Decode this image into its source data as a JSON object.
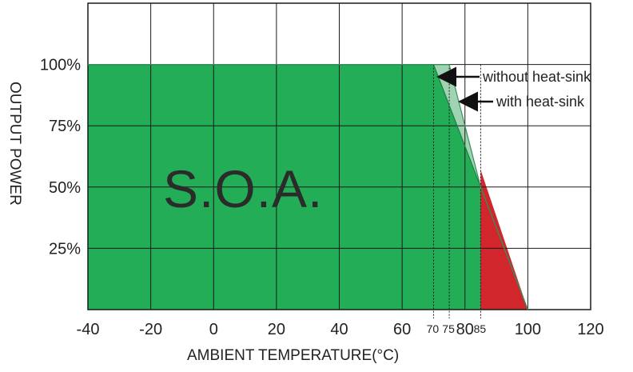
{
  "chart_data": {
    "type": "area",
    "xlabel": "AMBIENT TEMPERATURE(°C)",
    "ylabel": "OUTPUT POWER",
    "xlim": [
      -40,
      120
    ],
    "ylim": [
      0,
      125
    ],
    "grid": true,
    "x_ticks": [
      "-40",
      "-20",
      "0",
      "20",
      "40",
      "60",
      "80",
      "100",
      "120"
    ],
    "x_ticks_minor": [
      "70",
      "75",
      "85"
    ],
    "y_ticks": [
      "25%",
      "50%",
      "75%",
      "100%"
    ],
    "region_label": "S.O.A.",
    "series": [
      {
        "name": "without heat-sink",
        "x": [
          -40,
          70,
          85,
          100
        ],
        "y": [
          100,
          100,
          50,
          0
        ],
        "color": "#23ad57"
      },
      {
        "name": "with heat-sink",
        "x": [
          -40,
          75,
          85,
          100
        ],
        "y": [
          100,
          100,
          50,
          0
        ],
        "color": "#9fd3b1"
      }
    ],
    "derating_zone": {
      "x": [
        85,
        100
      ],
      "y": [
        57,
        0
      ],
      "color": "#d0262c"
    },
    "annotations": [
      {
        "text": "without heat-sink",
        "points_to": [
          70,
          100
        ]
      },
      {
        "text": "with heat-sink",
        "points_to": [
          75,
          100
        ]
      }
    ]
  }
}
